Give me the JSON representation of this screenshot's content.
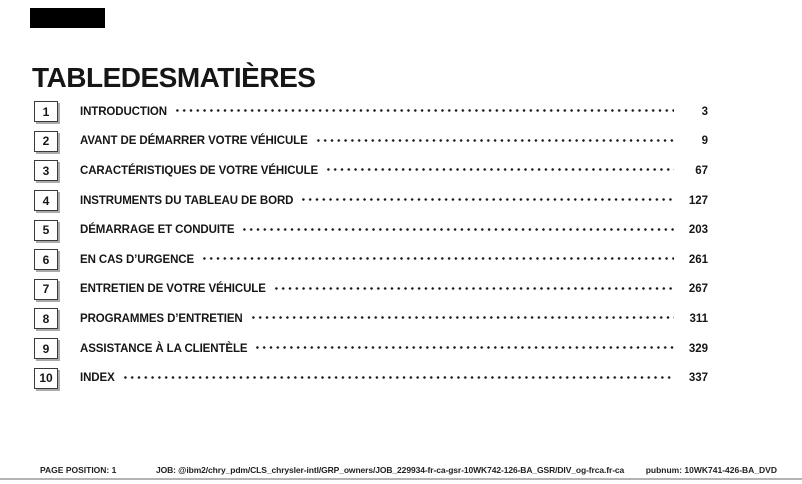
{
  "page": {
    "title": "TABLEDESMATIÈRES",
    "toc": [
      {
        "num": "1",
        "label": "INTRODUCTION",
        "page": "3"
      },
      {
        "num": "2",
        "label": "AVANT DE DÉMARRER VOTRE VÉHICULE",
        "page": "9"
      },
      {
        "num": "3",
        "label": "CARACTÉRISTIQUES DE VOTRE VÉHICULE",
        "page": "67"
      },
      {
        "num": "4",
        "label": "INSTRUMENTS DU TABLEAU DE BORD",
        "page": "127"
      },
      {
        "num": "5",
        "label": "DÉMARRAGE ET CONDUITE",
        "page": "203"
      },
      {
        "num": "6",
        "label": "EN CAS D’URGENCE",
        "page": "261"
      },
      {
        "num": "7",
        "label": "ENTRETIEN DE VOTRE VÉHICULE",
        "page": "267"
      },
      {
        "num": "8",
        "label": "PROGRAMMES D’ENTRETIEN",
        "page": "311"
      },
      {
        "num": "9",
        "label": "ASSISTANCE À LA CLIENTÈLE",
        "page": "329"
      },
      {
        "num": "10",
        "label": "INDEX",
        "page": "337"
      }
    ],
    "footer": {
      "page_position": "PAGE POSITION: 1",
      "job": "JOB: @ibm2/chry_pdm/CLS_chrysler-intl/GRP_owners/JOB_229934-fr-ca-gsr-10WK742-126-BA_GSR/DIV_og-frca.fr-ca",
      "pubnum": "pubnum: 10WK741-426-BA_DVD"
    }
  }
}
